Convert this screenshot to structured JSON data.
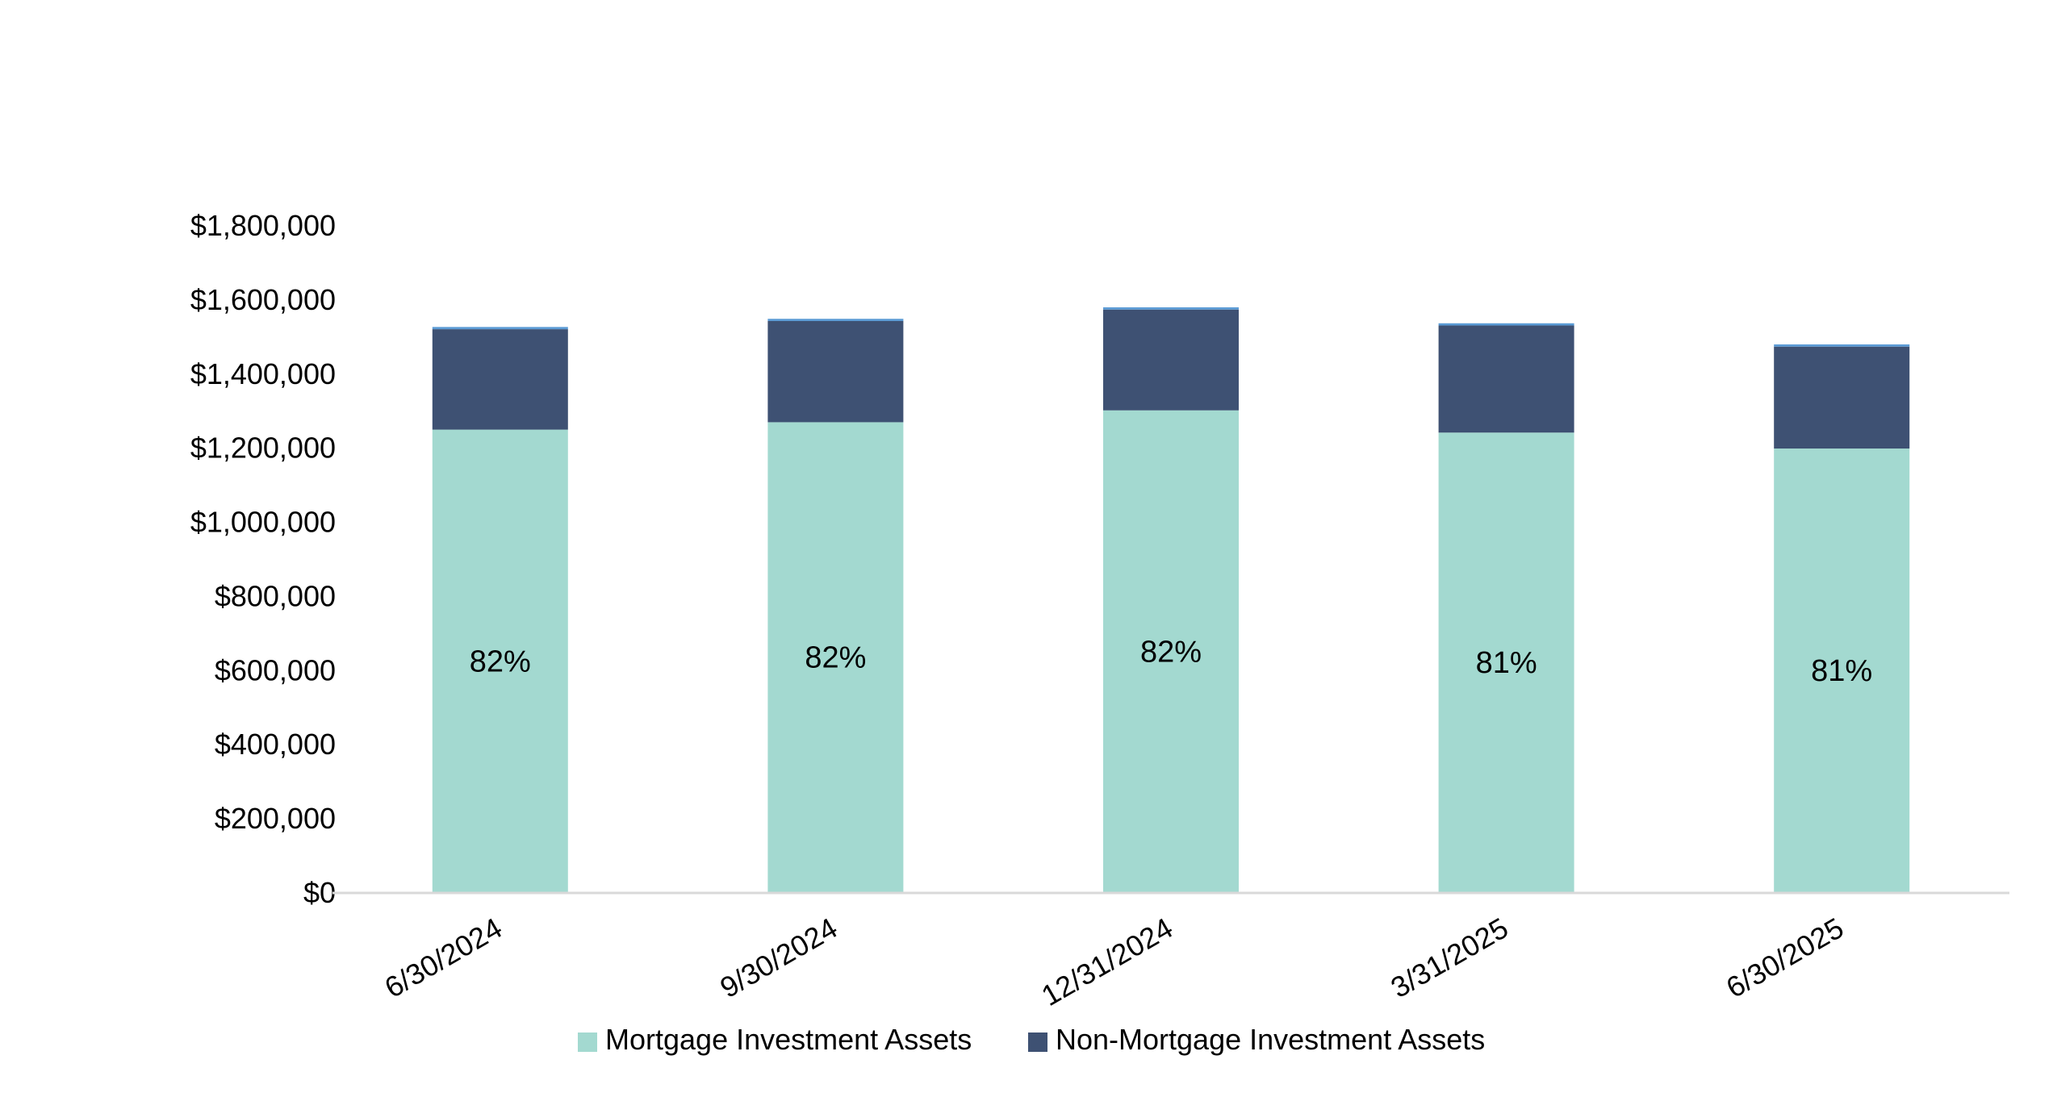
{
  "chart_data": {
    "type": "bar",
    "stacked": true,
    "categories": [
      "6/30/2024",
      "9/30/2024",
      "12/31/2024",
      "3/31/2025",
      "6/30/2025"
    ],
    "series": [
      {
        "name": "Mortgage Investment Assets",
        "color": "#a3d9d0",
        "values": [
          1248000,
          1268000,
          1300000,
          1240000,
          1197000
        ]
      },
      {
        "name": "Non-Mortgage Investment Assets",
        "color": "#3e5173",
        "values": [
          271000,
          273000,
          272000,
          289000,
          275000
        ]
      },
      {
        "name": "",
        "color": "#5b9bd5",
        "values": [
          6000,
          6000,
          6000,
          6000,
          6000
        ]
      }
    ],
    "data_labels": [
      "82%",
      "82%",
      "82%",
      "81%",
      "81%"
    ],
    "ylim": [
      0,
      1800000
    ],
    "yticks": [
      0,
      200000,
      400000,
      600000,
      800000,
      1000000,
      1200000,
      1400000,
      1600000,
      1800000
    ],
    "ytick_labels": [
      "$0",
      "$200,000",
      "$400,000",
      "$600,000",
      "$800,000",
      "$1,000,000",
      "$1,200,000",
      "$1,400,000",
      "$1,600,000",
      "$1,800,000"
    ],
    "grid": false,
    "legend": {
      "position": "bottom",
      "entries": [
        "Mortgage Investment Assets",
        "Non-Mortgage Investment Assets"
      ]
    },
    "title": "",
    "xlabel": "",
    "ylabel": ""
  }
}
